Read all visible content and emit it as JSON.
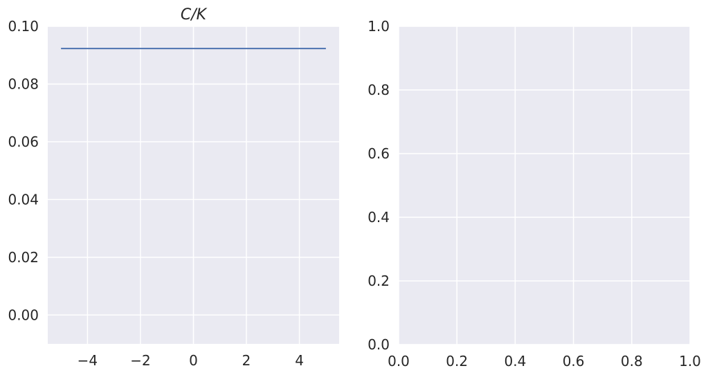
{
  "chart_data": [
    {
      "type": "line",
      "title": "C/K",
      "xlabel": "",
      "ylabel": "",
      "xlim": [
        -5.5,
        5.5
      ],
      "ylim": [
        -0.01,
        0.1
      ],
      "xticks": [
        -4,
        -2,
        0,
        2,
        4
      ],
      "xtick_labels": [
        "−4",
        "−2",
        "0",
        "2",
        "4"
      ],
      "yticks": [
        0.0,
        0.02,
        0.04,
        0.06,
        0.08,
        0.1
      ],
      "ytick_labels": [
        "0.00",
        "0.02",
        "0.04",
        "0.06",
        "0.08",
        "0.10"
      ],
      "grid": true,
      "series": [
        {
          "x": [
            -5,
            5
          ],
          "y": [
            0.0923,
            0.0923
          ],
          "color": "#4c72b0"
        }
      ]
    },
    {
      "type": "line",
      "title": "",
      "xlabel": "",
      "ylabel": "",
      "xlim": [
        0,
        1
      ],
      "ylim": [
        0,
        1
      ],
      "xticks": [
        0,
        0.2,
        0.4,
        0.6,
        0.8,
        1.0
      ],
      "xtick_labels": [
        "0.0",
        "0.2",
        "0.4",
        "0.6",
        "0.8",
        "1.0"
      ],
      "yticks": [
        0,
        0.2,
        0.4,
        0.6,
        0.8,
        1.0
      ],
      "ytick_labels": [
        "0.0",
        "0.2",
        "0.4",
        "0.6",
        "0.8",
        "1.0"
      ],
      "grid": true,
      "series": []
    }
  ],
  "style": {
    "axes_bg": "#eaeaf2",
    "grid_color": "#ffffff",
    "text_color": "#262626"
  }
}
